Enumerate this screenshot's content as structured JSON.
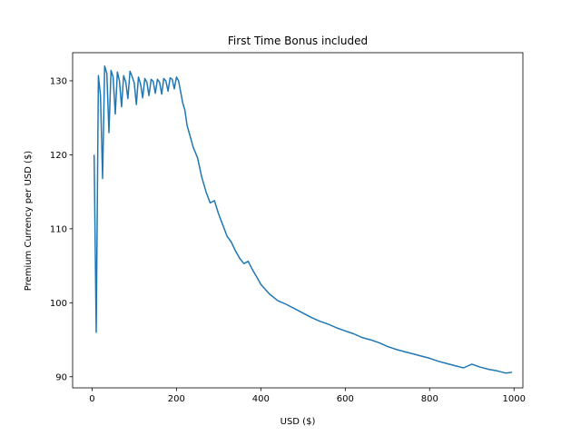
{
  "chart_data": {
    "type": "line",
    "title": "First Time Bonus included",
    "xlabel": "USD ($)",
    "ylabel": "Premium Currency per USD ($)",
    "xlim": [
      -46,
      1021
    ],
    "ylim": [
      88.5,
      133.8
    ],
    "grid": false,
    "xticks": [
      0,
      200,
      400,
      600,
      800,
      1000
    ],
    "yticks": [
      90,
      100,
      110,
      120,
      130
    ],
    "series": [
      {
        "color": "#1f77b4",
        "x": [
          5,
          10,
          15,
          20,
          25,
          30,
          35,
          40,
          45,
          50,
          55,
          60,
          65,
          70,
          75,
          80,
          85,
          90,
          95,
          100,
          105,
          110,
          115,
          120,
          125,
          130,
          135,
          140,
          145,
          150,
          155,
          160,
          165,
          170,
          175,
          180,
          185,
          190,
          195,
          200,
          205,
          210,
          215,
          220,
          225,
          230,
          235,
          240,
          250,
          260,
          270,
          280,
          290,
          300,
          310,
          320,
          330,
          340,
          350,
          360,
          370,
          380,
          390,
          400,
          420,
          440,
          460,
          480,
          500,
          520,
          540,
          560,
          580,
          600,
          620,
          640,
          660,
          680,
          700,
          720,
          740,
          760,
          780,
          800,
          820,
          840,
          860,
          880,
          900,
          920,
          940,
          960,
          980,
          995
        ],
        "y": [
          120,
          96,
          130.7,
          128,
          116.8,
          132,
          131,
          123,
          131.4,
          130.5,
          125.5,
          131.2,
          130,
          126.5,
          130.7,
          129.8,
          127.6,
          131.3,
          130.6,
          129.7,
          126.8,
          130.5,
          129.6,
          127.7,
          130.3,
          129.8,
          128,
          130.2,
          129.9,
          128.3,
          130.2,
          129.8,
          128.2,
          130.3,
          130,
          128.6,
          130.4,
          130.2,
          128.9,
          130.5,
          130,
          128.5,
          127,
          126,
          124,
          123,
          122,
          121,
          119.6,
          117,
          115,
          113.5,
          113.8,
          112,
          110.5,
          109,
          108.2,
          107,
          106,
          105.3,
          105.6,
          104.5,
          103.5,
          102.5,
          101.2,
          100.3,
          99.8,
          99.2,
          98.6,
          98,
          97.5,
          97.1,
          96.6,
          96.2,
          95.8,
          95.3,
          95,
          94.6,
          94.1,
          93.7,
          93.4,
          93.1,
          92.8,
          92.5,
          92.1,
          91.8,
          91.5,
          91.2,
          91.7,
          91.3,
          91,
          90.8,
          90.5,
          90.6
        ]
      }
    ]
  }
}
